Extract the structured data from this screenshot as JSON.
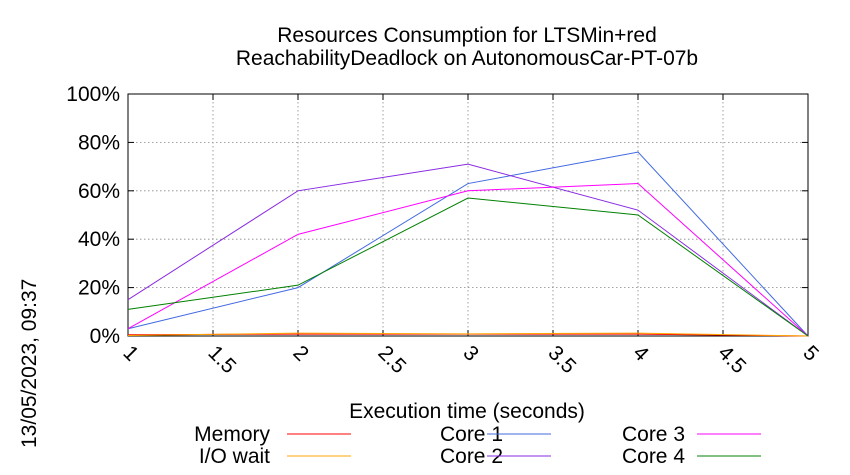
{
  "chart_data": {
    "type": "line",
    "title_line1": "Resources Consumption for LTSMin+red",
    "title_line2": "ReachabilityDeadlock on AutonomousCar-PT-07b",
    "xlabel": "Execution time (seconds)",
    "ylabel": "",
    "side_label": "13/05/2023, 09:37",
    "xlim": [
      1,
      5
    ],
    "ylim": [
      0,
      100
    ],
    "x_ticks": [
      "1",
      "1.5",
      "2",
      "2.5",
      "3",
      "3.5",
      "4",
      "4.5",
      "5"
    ],
    "y_ticks": [
      "0%",
      "20%",
      "40%",
      "60%",
      "80%",
      "100%"
    ],
    "grid": true,
    "legend_position": "bottom",
    "x": [
      1,
      2,
      3,
      4,
      5
    ],
    "series": [
      {
        "name": "Memory",
        "color": "#ff0000",
        "values": [
          0.5,
          0.8,
          0.8,
          0.8,
          0
        ]
      },
      {
        "name": "I/O wait",
        "color": "#ffa500",
        "values": [
          0.2,
          1.2,
          0.9,
          1.2,
          0
        ]
      },
      {
        "name": "Core 1",
        "color": "#4169e1",
        "values": [
          3,
          20,
          63,
          76,
          0
        ]
      },
      {
        "name": "Core 2",
        "color": "#8a2be2",
        "values": [
          15,
          60,
          71,
          52,
          0
        ]
      },
      {
        "name": "Core 3",
        "color": "#ff00ff",
        "values": [
          3,
          42,
          60,
          63,
          0
        ]
      },
      {
        "name": "Core 4",
        "color": "#008000",
        "values": [
          11,
          21,
          57,
          50,
          0
        ]
      }
    ]
  }
}
